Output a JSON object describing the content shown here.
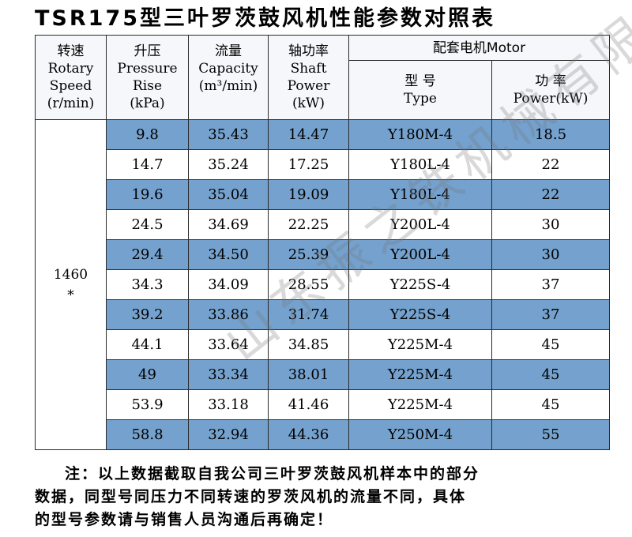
{
  "title": "TSR175型三叶罗茨鼓风机性能参数对照表",
  "header": {
    "speed": {
      "cn": "转速",
      "en1": "Rotary",
      "en2": "Speed",
      "unit": "(r/min)"
    },
    "pressure": {
      "cn": "升压",
      "en1": "Pressure",
      "en2": "Rise",
      "unit": "(kPa)"
    },
    "capacity": {
      "cn": "流量",
      "en1": "Capacity",
      "unit": "(m³/min)"
    },
    "shaft": {
      "cn": "轴功率",
      "en1": "Shaft",
      "en2": "Power",
      "unit": "(kW)"
    },
    "motor": "配套电机Motor",
    "type": {
      "cn": "型 号",
      "en": "Type"
    },
    "power": {
      "cn": "功 率",
      "en": "Power(kW)"
    }
  },
  "speed_value": "1460",
  "speed_mark": "*",
  "rows": [
    {
      "pressure": "9.8",
      "capacity": "35.43",
      "shaft": "14.47",
      "type": "Y180M-4",
      "power": "18.5"
    },
    {
      "pressure": "14.7",
      "capacity": "35.24",
      "shaft": "17.25",
      "type": "Y180L-4",
      "power": "22"
    },
    {
      "pressure": "19.6",
      "capacity": "35.04",
      "shaft": "19.09",
      "type": "Y180L-4",
      "power": "22"
    },
    {
      "pressure": "24.5",
      "capacity": "34.69",
      "shaft": "22.25",
      "type": "Y200L-4",
      "power": "30"
    },
    {
      "pressure": "29.4",
      "capacity": "34.50",
      "shaft": "25.39",
      "type": "Y200L-4",
      "power": "30"
    },
    {
      "pressure": "34.3",
      "capacity": "34.09",
      "shaft": "28.55",
      "type": "Y225S-4",
      "power": "37"
    },
    {
      "pressure": "39.2",
      "capacity": "33.86",
      "shaft": "31.74",
      "type": "Y225S-4",
      "power": "37"
    },
    {
      "pressure": "44.1",
      "capacity": "33.64",
      "shaft": "34.85",
      "type": "Y225M-4",
      "power": "45"
    },
    {
      "pressure": "49",
      "capacity": "33.34",
      "shaft": "38.01",
      "type": "Y225M-4",
      "power": "45"
    },
    {
      "pressure": "53.9",
      "capacity": "33.18",
      "shaft": "41.46",
      "type": "Y225M-4",
      "power": "45"
    },
    {
      "pressure": "58.8",
      "capacity": "32.94",
      "shaft": "44.36",
      "type": "Y250M-4",
      "power": "55"
    }
  ],
  "note": {
    "line1": "注：以上数据截取自我公司三叶罗茨鼓风机样本中的部分",
    "line2": "数据，同型号同压力不同转速的罗茨风机的流量不同，具体",
    "line3": "的型号参数请与销售人员沟通后再确定！"
  },
  "watermark": "山东振之铁机械有限公司",
  "colors": {
    "row_blue": "#74a1cd",
    "row_white": "#ffffff",
    "border": "#2a2a2a"
  }
}
